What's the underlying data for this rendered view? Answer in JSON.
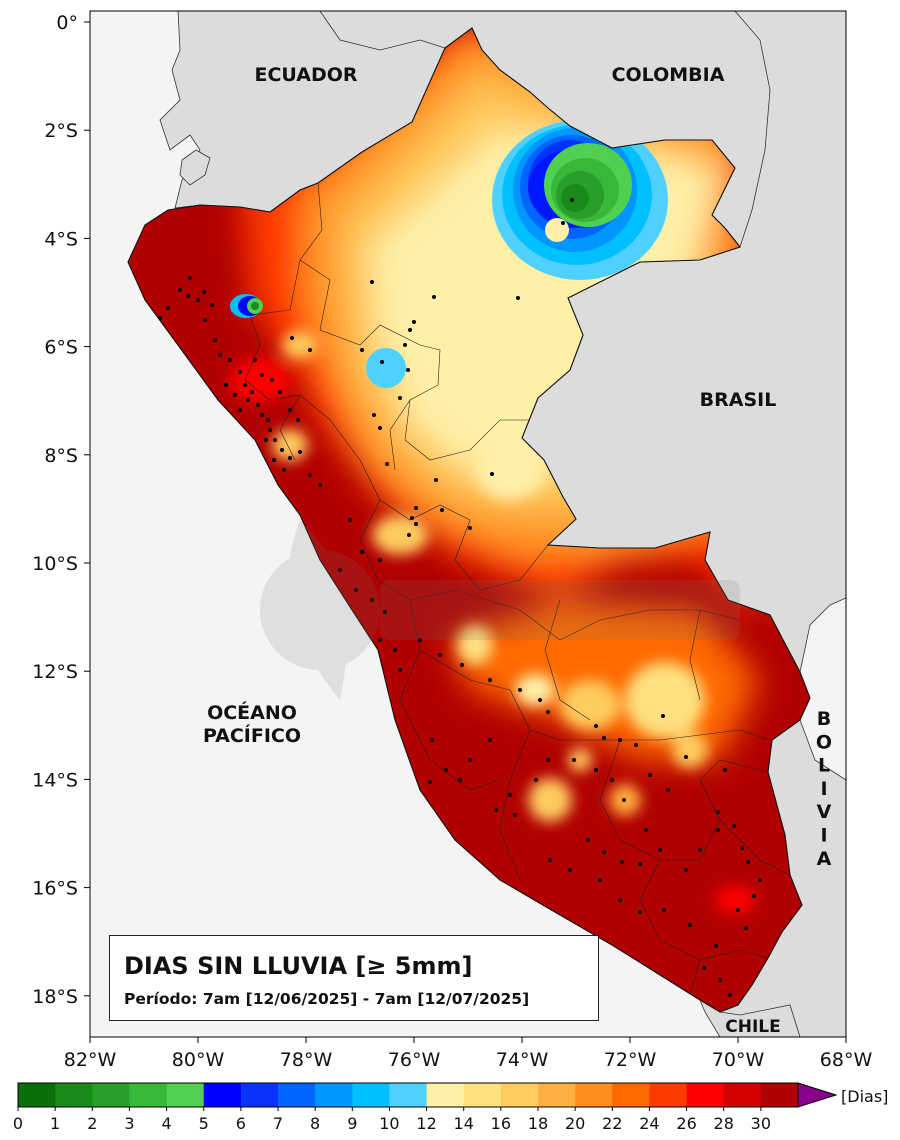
{
  "map": {
    "countries": {
      "ecuador": "ECUADOR",
      "colombia": "COLOMBIA",
      "brasil": "BRASIL",
      "ocean_line1": "OCÉANO",
      "ocean_line2": "PACÍFICO",
      "bolivia_letters": [
        "B",
        "O",
        "L",
        "I",
        "V",
        "I",
        "A"
      ],
      "chile": "CHILE"
    },
    "lat_ticks": [
      "0°",
      "2°S",
      "4°S",
      "6°S",
      "8°S",
      "10°S",
      "12°S",
      "14°S",
      "16°S",
      "18°S"
    ],
    "lon_ticks": [
      "82°W",
      "80°W",
      "78°W",
      "76°W",
      "74°W",
      "72°W",
      "70°W",
      "68°W"
    ],
    "colors": {
      "ocean": "#f4f4f4",
      "neighbors": "#dcdcdc",
      "max_dry": "#b10000"
    }
  },
  "legend": {
    "title": "DIAS SIN LLUVIA [≥ 5mm]",
    "period": "Período: 7am [12/06/2025] - 7am [12/07/2025]"
  },
  "colorbar": {
    "labels": [
      "0",
      "1",
      "2",
      "3",
      "4",
      "5",
      "6",
      "7",
      "8",
      "9",
      "10",
      "12",
      "14",
      "16",
      "18",
      "20",
      "22",
      "24",
      "26",
      "28",
      "30"
    ],
    "colors": [
      "#0a6e0a",
      "#1a8a1a",
      "#2a9e2a",
      "#38b838",
      "#4fd04f",
      "#0000ff",
      "#0a32ff",
      "#0064ff",
      "#0096ff",
      "#00c0ff",
      "#50d0ff",
      "#fff0a8",
      "#ffe080",
      "#ffcc60",
      "#ffb040",
      "#ff9020",
      "#ff6a00",
      "#ff3a00",
      "#ff0000",
      "#d40000",
      "#b10000"
    ],
    "unit": "[Dias]",
    "extend_color": "#8a008a"
  }
}
